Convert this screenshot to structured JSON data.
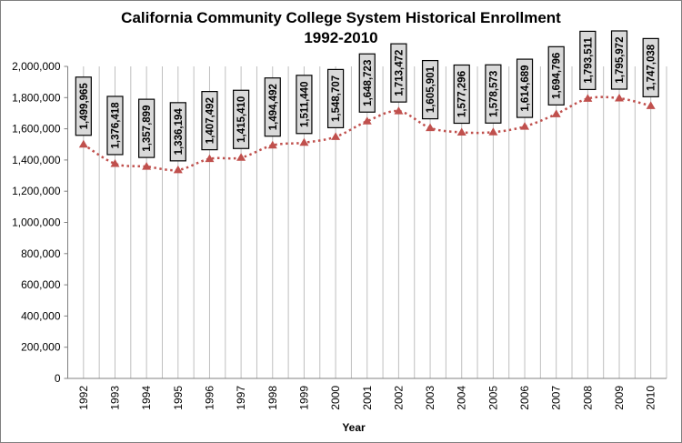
{
  "chart_data": {
    "type": "line",
    "title_line1": "California Community College System Historical Enrollment",
    "title_line2": "1992-2010",
    "xlabel": "Year",
    "ylabel": "",
    "categories": [
      "1992",
      "1993",
      "1994",
      "1995",
      "1996",
      "1997",
      "1998",
      "1999",
      "2000",
      "2001",
      "2002",
      "2003",
      "2004",
      "2005",
      "2006",
      "2007",
      "2008",
      "2009",
      "2010"
    ],
    "values": [
      1499965,
      1376418,
      1357899,
      1336194,
      1407492,
      1415410,
      1494492,
      1511440,
      1548707,
      1648723,
      1713472,
      1605901,
      1577296,
      1578573,
      1614689,
      1694796,
      1793511,
      1795972,
      1747038
    ],
    "data_labels": [
      "1,499,965",
      "1,376,418",
      "1,357,899",
      "1,336,194",
      "1,407,492",
      "1,415,410",
      "1,494,492",
      "1,511,440",
      "1,548,707",
      "1,648,723",
      "1,713,472",
      "1,605,901",
      "1,577,296",
      "1,578,573",
      "1,614,689",
      "1,694,796",
      "1,793,511",
      "1,795,972",
      "1,747,038"
    ],
    "ylim": [
      0,
      2000000
    ],
    "yticks": [
      "0",
      "200,000",
      "400,000",
      "600,000",
      "800,000",
      "1,000,000",
      "1,200,000",
      "1,400,000",
      "1,600,000",
      "1,800,000",
      "2,000,000"
    ],
    "grid": "vertical",
    "legend": "none",
    "line_style": "dotted smoothed",
    "marker": "triangle",
    "colors": {
      "series": "#c0504d",
      "grid": "#bfbfbf",
      "label_box": "#d9d9d9"
    }
  }
}
